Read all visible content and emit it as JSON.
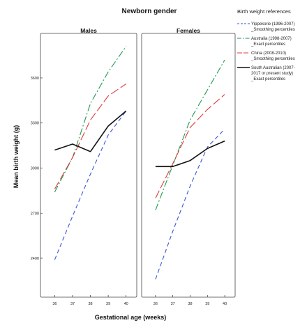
{
  "figure": {
    "title": "Newborn gender",
    "legend_title": "Birth weight references",
    "ylabel": "Mean birth weight (g)",
    "xlabel": "Gestational age (weeks)"
  },
  "colors": {
    "Yippekorie": "#3a55d8",
    "Australia": "#1f9a52",
    "China": "#e03a3a",
    "South Australia": "#111111"
  },
  "legend": [
    {
      "series": "Yippekorie",
      "line1": "Yippekorie (1996-2007)",
      "line2": "_Smoothing percentiles",
      "dash": "6,4"
    },
    {
      "series": "Australia",
      "line1": "Australia (1998-2007)",
      "line2": "_Exact percentiles",
      "dash": "10,3,2,3"
    },
    {
      "series": "China",
      "line1": "China (2008-2010)",
      "line2": "_Smoothing percentiles",
      "dash": "12,4"
    },
    {
      "series": "South Australia",
      "line1": "South Australian (2007-",
      "line2": "2017 or present study)",
      "line3": "_Exact percentiles",
      "dash": ""
    }
  ],
  "chart_data": [
    {
      "type": "line",
      "title": "Males",
      "x": [
        36,
        37,
        38,
        39,
        40
      ],
      "xlabel": "Gestational age (weeks)",
      "ylabel": "Mean birth weight (g)",
      "yticks": [
        2400,
        2700,
        3000,
        3300,
        3600
      ],
      "ylim": [
        2150,
        3850
      ],
      "xlim": [
        35.2,
        40.6
      ],
      "series": [
        {
          "name": "Yippekorie",
          "values": [
            2390,
            2680,
            2960,
            3220,
            3380
          ]
        },
        {
          "name": "Australia",
          "values": [
            2840,
            3070,
            3430,
            3640,
            3810
          ]
        },
        {
          "name": "China",
          "values": [
            2860,
            3070,
            3320,
            3480,
            3560
          ]
        },
        {
          "name": "South Australia",
          "values": [
            3120,
            3160,
            3110,
            3280,
            3380
          ]
        }
      ]
    },
    {
      "type": "line",
      "title": "Females",
      "x": [
        36,
        37,
        38,
        39,
        40
      ],
      "xlabel": "Gestational age (weeks)",
      "ylabel": "Mean birth weight (g)",
      "yticks": [
        2400,
        2700,
        3000,
        3300,
        3600
      ],
      "ylim": [
        2150,
        3850
      ],
      "xlim": [
        35.2,
        40.6
      ],
      "series": [
        {
          "name": "Yippekorie",
          "values": [
            2260,
            2580,
            2880,
            3140,
            3260
          ]
        },
        {
          "name": "Australia",
          "values": [
            2720,
            3020,
            3320,
            3520,
            3720
          ]
        },
        {
          "name": "China",
          "values": [
            2800,
            3030,
            3270,
            3390,
            3490
          ]
        },
        {
          "name": "South Australia",
          "values": [
            3010,
            3010,
            3050,
            3130,
            3180
          ]
        }
      ]
    }
  ]
}
